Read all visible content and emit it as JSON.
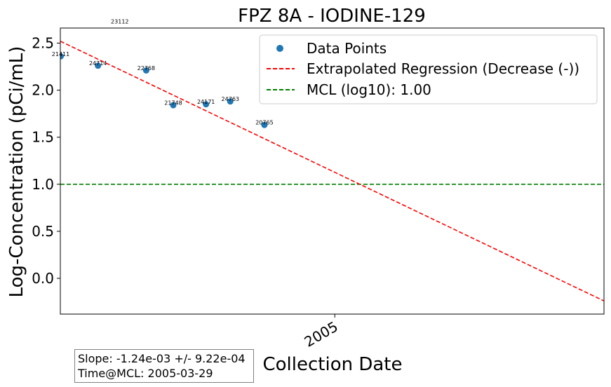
{
  "chart_data": {
    "type": "scatter",
    "title": "FPZ  8A - IODINE-129",
    "xlabel": "Collection Date",
    "ylabel": "Log-Concentration (pCi/mL)",
    "x_ticks": [
      "2005"
    ],
    "y_ticks": [
      "0.0",
      "0.5",
      "1.0",
      "1.5",
      "2.0",
      "2.5"
    ],
    "x_range": [
      "2002-11-13",
      "2007-02-05"
    ],
    "ylim": [
      -0.38,
      2.66
    ],
    "grid": false,
    "legend_position": "top-right",
    "legend": {
      "data_points": "Data Points",
      "regression": "Extrapolated Regression (Decrease (-))",
      "mcl": "MCL (log10): 1.00"
    },
    "series": [
      {
        "name": "Data Points",
        "type": "scatter",
        "color": "#1f77b4",
        "points": [
          {
            "x": "2002-11-14",
            "y": 2.36,
            "label": "21411"
          },
          {
            "x": "2003-02-28",
            "y": 2.26,
            "label": "24714"
          },
          {
            "x": "2003-07-15",
            "y": 2.21,
            "label": "22768"
          },
          {
            "x": "2003-09-30",
            "y": 1.84,
            "label": "21748"
          },
          {
            "x": "2004-01-01",
            "y": 1.85,
            "label": "24171"
          },
          {
            "x": "2004-03-10",
            "y": 1.88,
            "label": "24763"
          },
          {
            "x": "2004-06-15",
            "y": 1.63,
            "label": "20765"
          }
        ]
      },
      {
        "name": "Extrapolated Regression (Decrease (-))",
        "type": "line",
        "style": "dashed",
        "color": "#ff0000",
        "points": [
          {
            "x": "2002-11-13",
            "y": 2.52
          },
          {
            "x": "2007-02-05",
            "y": -0.24
          }
        ]
      },
      {
        "name": "MCL (log10): 1.00",
        "type": "hline",
        "style": "dashed",
        "color": "#008000",
        "y": 1.0
      }
    ],
    "outlier_label": {
      "text": "23112",
      "x": "2003-05-01",
      "y": 2.73
    },
    "stats": {
      "slope": "Slope: -1.24e-03 +/- 9.22e-04",
      "time_at_mcl": "Time@MCL: 2005-03-29"
    }
  }
}
